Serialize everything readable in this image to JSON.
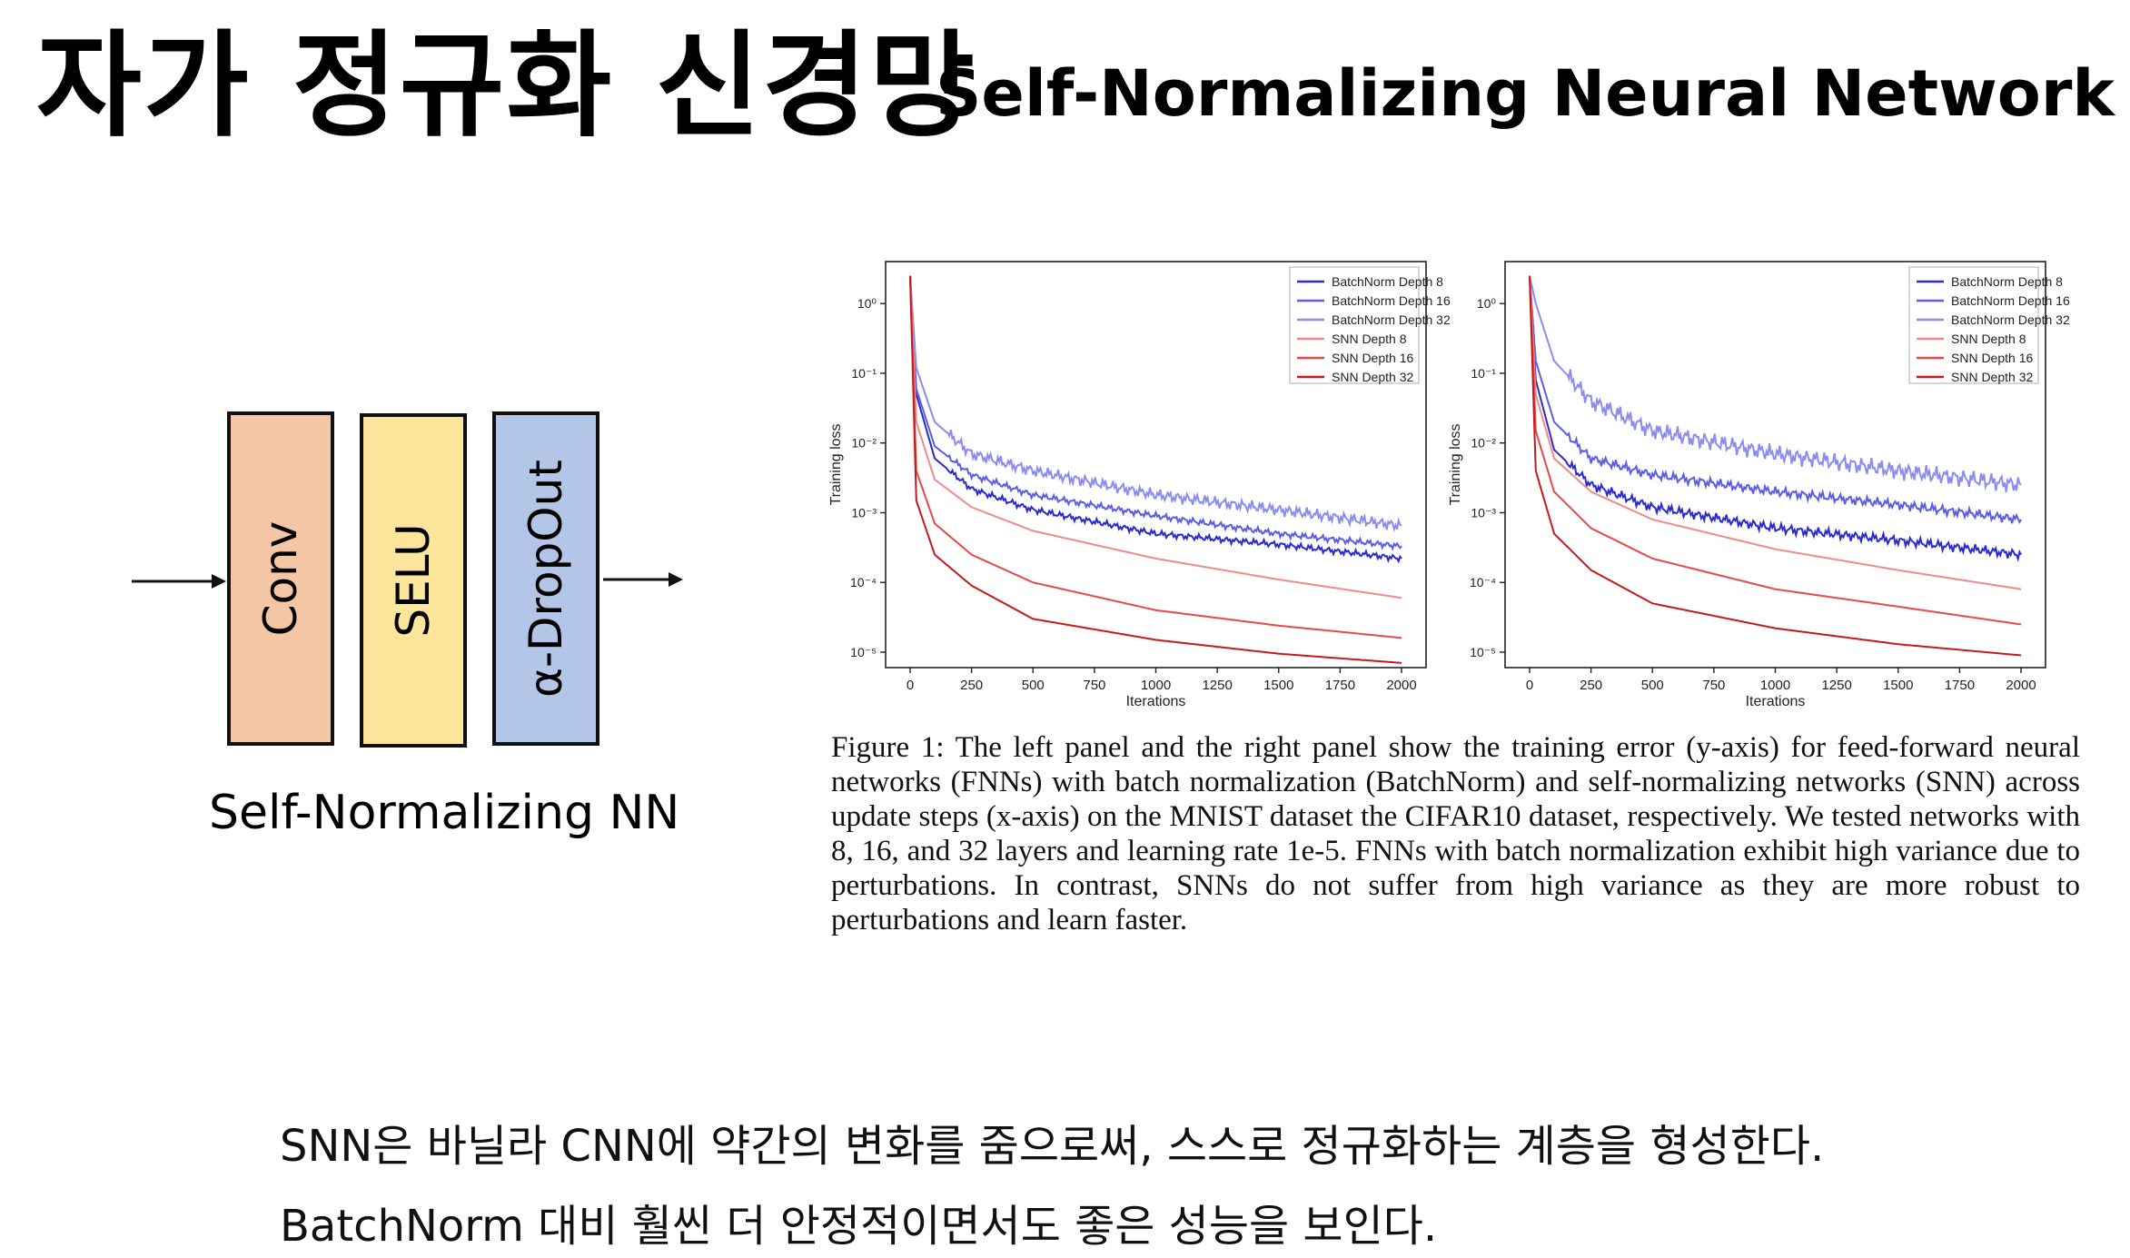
{
  "title": {
    "korean": "자가 정규화 신경망",
    "english": "Self-Normalizing Neural Network"
  },
  "diagram": {
    "blocks": [
      {
        "label": "Conv",
        "color": "#f5c6a5"
      },
      {
        "label": "SELU",
        "color": "#fde59b"
      },
      {
        "label": "α-DropOut",
        "color": "#b3c6e7"
      }
    ],
    "caption": "Self-Normalizing NN"
  },
  "chart_data": [
    {
      "type": "line",
      "title": "",
      "xlabel": "Iterations",
      "ylabel": "Training loss",
      "yscale": "log",
      "xlim": [
        0,
        2000
      ],
      "ylim": [
        6e-06,
        4
      ],
      "xticks": [
        "0",
        "250",
        "500",
        "750",
        "1000",
        "1250",
        "1500",
        "1750",
        "2000"
      ],
      "yticks": [
        "10⁰",
        "10⁻¹",
        "10⁻²",
        "10⁻³",
        "10⁻⁴",
        "10⁻⁵"
      ],
      "legend_position": "top-right",
      "legend": [
        "BatchNorm Depth 8",
        "BatchNorm Depth 16",
        "BatchNorm Depth 32",
        "SNN Depth 8",
        "SNN Depth 16",
        "SNN Depth 32"
      ],
      "series": [
        {
          "name": "BatchNorm Depth 8",
          "color": "#2a2ad0",
          "x": [
            0,
            25,
            100,
            250,
            500,
            1000,
            1500,
            2000
          ],
          "y": [
            2.5,
            0.05,
            0.006,
            0.0022,
            0.0011,
            0.0005,
            0.00035,
            0.00022
          ]
        },
        {
          "name": "BatchNorm Depth 16",
          "color": "#5c5ce8",
          "x": [
            0,
            25,
            100,
            250,
            500,
            1000,
            1500,
            2000
          ],
          "y": [
            2.5,
            0.06,
            0.009,
            0.0035,
            0.0018,
            0.0009,
            0.0005,
            0.00033
          ]
        },
        {
          "name": "BatchNorm Depth 32",
          "color": "#8c8cf0",
          "x": [
            0,
            25,
            100,
            250,
            500,
            1000,
            1500,
            2000
          ],
          "y": [
            2.5,
            0.12,
            0.02,
            0.007,
            0.004,
            0.0018,
            0.0011,
            0.00065
          ]
        },
        {
          "name": "SNN Depth 8",
          "color": "#f08a8a",
          "x": [
            0,
            25,
            100,
            250,
            500,
            1000,
            1500,
            2000
          ],
          "y": [
            2.5,
            0.02,
            0.003,
            0.0012,
            0.00055,
            0.00022,
            0.00011,
            6e-05
          ]
        },
        {
          "name": "SNN Depth 16",
          "color": "#e84848",
          "x": [
            0,
            25,
            100,
            250,
            500,
            1000,
            1500,
            2000
          ],
          "y": [
            2.5,
            0.004,
            0.0007,
            0.00025,
            0.0001,
            4e-05,
            2.4e-05,
            1.6e-05
          ]
        },
        {
          "name": "SNN Depth 32",
          "color": "#c81818",
          "x": [
            0,
            25,
            100,
            250,
            500,
            1000,
            1500,
            2000
          ],
          "y": [
            2.5,
            0.0015,
            0.00025,
            9e-05,
            3e-05,
            1.5e-05,
            9.5e-06,
            7e-06
          ]
        }
      ]
    },
    {
      "type": "line",
      "title": "",
      "xlabel": "Iterations",
      "ylabel": "Training loss",
      "yscale": "log",
      "xlim": [
        0,
        2000
      ],
      "ylim": [
        6e-06,
        4
      ],
      "xticks": [
        "0",
        "250",
        "500",
        "750",
        "1000",
        "1250",
        "1500",
        "1750",
        "2000"
      ],
      "yticks": [
        "10⁰",
        "10⁻¹",
        "10⁻²",
        "10⁻³",
        "10⁻⁴",
        "10⁻⁵"
      ],
      "legend_position": "top-right",
      "legend": [
        "BatchNorm Depth 8",
        "BatchNorm Depth 16",
        "BatchNorm Depth 32",
        "SNN Depth 8",
        "SNN Depth 16",
        "SNN Depth 32"
      ],
      "series": [
        {
          "name": "BatchNorm Depth 8",
          "color": "#2a2ad0",
          "x": [
            0,
            25,
            100,
            250,
            500,
            1000,
            1500,
            2000
          ],
          "y": [
            2.5,
            0.08,
            0.008,
            0.0025,
            0.0012,
            0.0006,
            0.0004,
            0.00025
          ]
        },
        {
          "name": "BatchNorm Depth 16",
          "color": "#5c5ce8",
          "x": [
            0,
            25,
            100,
            250,
            500,
            1000,
            1500,
            2000
          ],
          "y": [
            2.5,
            0.15,
            0.02,
            0.006,
            0.0035,
            0.002,
            0.0013,
            0.0008
          ]
        },
        {
          "name": "BatchNorm Depth 32",
          "color": "#8c8cf0",
          "x": [
            0,
            25,
            100,
            250,
            500,
            1000,
            1500,
            2000
          ],
          "y": [
            2.5,
            1.0,
            0.15,
            0.04,
            0.015,
            0.007,
            0.004,
            0.0025
          ]
        },
        {
          "name": "SNN Depth 8",
          "color": "#f08a8a",
          "x": [
            0,
            25,
            100,
            250,
            500,
            1000,
            1500,
            2000
          ],
          "y": [
            2.5,
            0.05,
            0.006,
            0.002,
            0.0008,
            0.0003,
            0.00015,
            8e-05
          ]
        },
        {
          "name": "SNN Depth 16",
          "color": "#e84848",
          "x": [
            0,
            25,
            100,
            250,
            500,
            1000,
            1500,
            2000
          ],
          "y": [
            2.5,
            0.015,
            0.002,
            0.0006,
            0.00022,
            8e-05,
            4.5e-05,
            2.5e-05
          ]
        },
        {
          "name": "SNN Depth 32",
          "color": "#c81818",
          "x": [
            0,
            25,
            100,
            250,
            500,
            1000,
            1500,
            2000
          ],
          "y": [
            2.5,
            0.004,
            0.0005,
            0.00015,
            5e-05,
            2.2e-05,
            1.3e-05,
            9e-06
          ]
        }
      ]
    }
  ],
  "figure_caption": "Figure 1: The left panel and the right panel show the training error (y-axis) for feed-forward neural networks (FNNs) with batch normalization (BatchNorm) and self-normalizing networks (SNN) across update steps (x-axis) on the MNIST dataset the CIFAR10 dataset, respectively. We tested networks with 8, 16, and 32 layers and learning rate 1e-5. FNNs with batch normalization exhibit high variance due to perturbations. In contrast, SNNs do not suffer from high variance as they are more robust to perturbations and learn faster.",
  "body": {
    "line1": "SNN은 바닐라 CNN에 약간의 변화를 줌으로써, 스스로 정규화하는 계층을 형성한다.",
    "line2": "BatchNorm 대비 훨씬 더 안정적이면서도 좋은 성능을 보인다."
  }
}
